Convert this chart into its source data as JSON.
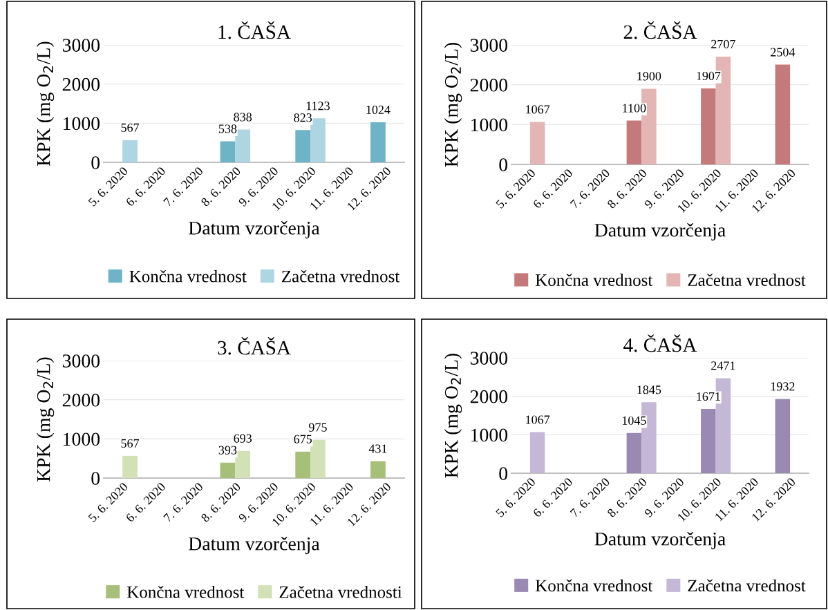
{
  "chart_data": [
    {
      "type": "bar",
      "title": "1. ČAŠA",
      "xlabel": "Datum vzorčenja",
      "ylabel": "KPK (mg O$_{2}$/L)",
      "categories": [
        "5. 6. 2020",
        "6. 6. 2020",
        "7. 6. 2020",
        "8. 6. 2020",
        "9. 6. 2020",
        "10. 6. 2020",
        "11. 6. 2020",
        "12. 6. 2020"
      ],
      "ylim": [
        0,
        3000
      ],
      "yticks": [
        0,
        1000,
        2000,
        3000
      ],
      "grid": "y",
      "legend": "bottom",
      "data_labels": true,
      "series": [
        {
          "name": "Končna vrednost",
          "color": "#6fb4c6",
          "values": [
            null,
            null,
            null,
            538,
            null,
            823,
            null,
            1024
          ]
        },
        {
          "name": "Začetna vrednost",
          "color": "#aed6e2",
          "values": [
            567,
            null,
            null,
            838,
            null,
            1123,
            null,
            null
          ]
        }
      ]
    },
    {
      "type": "bar",
      "title": "2. ČAŠA",
      "xlabel": "Datum vzorčenja",
      "ylabel": "KPK (mg O$_{2}$/L)",
      "categories": [
        "5. 6. 2020",
        "6. 6. 2020",
        "7. 6. 2020",
        "8. 6. 2020",
        "9. 6. 2020",
        "10. 6. 2020",
        "11. 6. 2020",
        "12. 6. 2020"
      ],
      "ylim": [
        0,
        3000
      ],
      "yticks": [
        0,
        1000,
        2000,
        3000
      ],
      "grid": "y",
      "legend": "bottom",
      "data_labels": true,
      "series": [
        {
          "name": "Končna vrednost",
          "color": "#c47a7a",
          "values": [
            null,
            null,
            null,
            1100,
            null,
            1907,
            null,
            2504
          ]
        },
        {
          "name": "Začetna vrednost",
          "color": "#e3b5b5",
          "values": [
            1067,
            null,
            null,
            1900,
            null,
            2707,
            null,
            null
          ]
        }
      ]
    },
    {
      "type": "bar",
      "title": "3. ČAŠA",
      "xlabel": "Datum vzorčenja",
      "ylabel": "KPK (mg O$_{2}$/L)",
      "categories": [
        "5. 6. 2020",
        "6. 6. 2020",
        "7. 6. 2020",
        "8. 6. 2020",
        "9. 6. 2020",
        "10. 6. 2020",
        "11. 6. 2020",
        "12. 6. 2020"
      ],
      "ylim": [
        0,
        3000
      ],
      "yticks": [
        0,
        1000,
        2000,
        3000
      ],
      "grid": "y",
      "legend": "bottom",
      "data_labels": true,
      "series": [
        {
          "name": "Končna vrednost",
          "color": "#a6c07a",
          "values": [
            null,
            null,
            null,
            393,
            null,
            675,
            null,
            431
          ]
        },
        {
          "name": "Začetna vrednosti",
          "color": "#d2e1b6",
          "values": [
            567,
            null,
            null,
            693,
            null,
            975,
            null,
            null
          ]
        }
      ]
    },
    {
      "type": "bar",
      "title": "4. ČAŠA",
      "xlabel": "Datum vzorčenja",
      "ylabel": "KPK (mg O$_{2}$/L)",
      "categories": [
        "5. 6. 2020",
        "6. 6. 2020",
        "7. 6. 2020",
        "8. 6. 2020",
        "9. 6. 2020",
        "10. 6. 2020",
        "11. 6. 2020",
        "12. 6. 2020"
      ],
      "ylim": [
        0,
        3000
      ],
      "yticks": [
        0,
        1000,
        2000,
        3000
      ],
      "grid": "y",
      "legend": "bottom",
      "data_labels": true,
      "series": [
        {
          "name": "Končna vrednost",
          "color": "#9a89b3",
          "values": [
            null,
            null,
            null,
            1045,
            null,
            1671,
            null,
            1932
          ]
        },
        {
          "name": "Začetna vrednost",
          "color": "#c4b8d6",
          "values": [
            1067,
            null,
            null,
            1845,
            null,
            2471,
            null,
            null
          ]
        }
      ]
    }
  ]
}
